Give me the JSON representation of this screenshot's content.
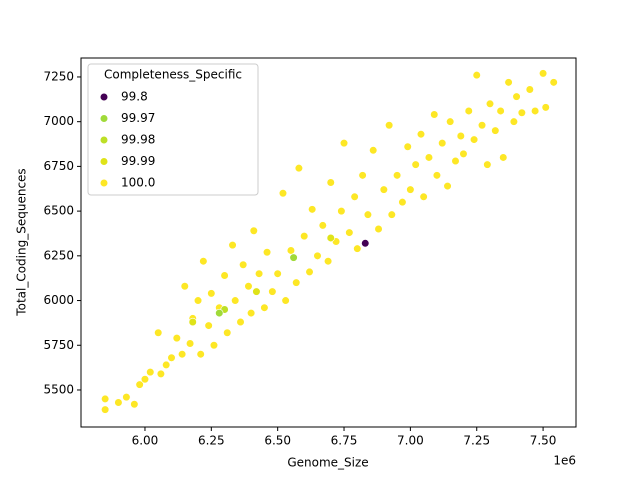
{
  "chart_data": {
    "type": "scatter",
    "xlabel": "Genome_Size",
    "ylabel": "Total_Coding_Sequences",
    "x_offset_label": "1e6",
    "xlim": [
      5759000,
      7624000
    ],
    "ylim": [
      5293,
      7356
    ],
    "xticks": [
      {
        "value": 6000000,
        "label": "6.00"
      },
      {
        "value": 6250000,
        "label": "6.25"
      },
      {
        "value": 6500000,
        "label": "6.50"
      },
      {
        "value": 6750000,
        "label": "6.75"
      },
      {
        "value": 7000000,
        "label": "7.00"
      },
      {
        "value": 7250000,
        "label": "7.25"
      },
      {
        "value": 7500000,
        "label": "7.50"
      }
    ],
    "yticks": [
      5500,
      5750,
      6000,
      6250,
      6500,
      6750,
      7000,
      7250
    ],
    "legend_title": "Completeness_Specific",
    "legend_loc": "upper left",
    "series": [
      {
        "name": "100.0",
        "color": "#fde725",
        "x": [
          5850000,
          5850000,
          5900000,
          5930000,
          5960000,
          5980000,
          6000000,
          6020000,
          6050000,
          6060000,
          6080000,
          6100000,
          6120000,
          6140000,
          6150000,
          6170000,
          6180000,
          6200000,
          6210000,
          6220000,
          6240000,
          6250000,
          6260000,
          6280000,
          6300000,
          6310000,
          6330000,
          6340000,
          6360000,
          6370000,
          6390000,
          6400000,
          6410000,
          6430000,
          6450000,
          6460000,
          6480000,
          6500000,
          6520000,
          6530000,
          6550000,
          6570000,
          6580000,
          6600000,
          6620000,
          6630000,
          6650000,
          6670000,
          6690000,
          6700000,
          6720000,
          6740000,
          6750000,
          6770000,
          6790000,
          6800000,
          6820000,
          6840000,
          6860000,
          6880000,
          6900000,
          6920000,
          6930000,
          6950000,
          6970000,
          6990000,
          7000000,
          7020000,
          7040000,
          7050000,
          7070000,
          7090000,
          7100000,
          7120000,
          7140000,
          7150000,
          7170000,
          7190000,
          7200000,
          7220000,
          7240000,
          7250000,
          7270000,
          7290000,
          7300000,
          7320000,
          7340000,
          7350000,
          7370000,
          7390000,
          7400000,
          7420000,
          7450000,
          7470000,
          7500000,
          7510000,
          7540000
        ],
        "y": [
          5390,
          5450,
          5430,
          5460,
          5420,
          5530,
          5560,
          5600,
          5820,
          5590,
          5640,
          5680,
          5790,
          5700,
          6080,
          5760,
          5900,
          6000,
          5700,
          6220,
          5860,
          6040,
          5750,
          5960,
          6140,
          5820,
          6310,
          6000,
          5880,
          6200,
          6080,
          5930,
          6390,
          6150,
          5960,
          6270,
          6050,
          6150,
          6600,
          6000,
          6280,
          6100,
          6740,
          6360,
          6160,
          6510,
          6250,
          6420,
          6220,
          6660,
          6330,
          6500,
          6880,
          6380,
          6580,
          6290,
          6700,
          6480,
          6840,
          6400,
          6620,
          6980,
          6480,
          6700,
          6550,
          6860,
          6620,
          6760,
          6930,
          6580,
          6800,
          7040,
          6700,
          6880,
          6640,
          7000,
          6780,
          6920,
          6820,
          7060,
          6900,
          7260,
          6980,
          6760,
          7100,
          6950,
          7060,
          6800,
          7220,
          7000,
          7140,
          7050,
          7180,
          7060,
          7270,
          7080,
          7220
        ]
      },
      {
        "name": "99.99",
        "color": "#dfe318",
        "x": [
          6180000,
          6420000,
          6700000
        ],
        "y": [
          5880,
          6050,
          6350
        ]
      },
      {
        "name": "99.98",
        "color": "#bddf26",
        "x": [
          6300000
        ],
        "y": [
          5950
        ]
      },
      {
        "name": "99.97",
        "color": "#a0da39",
        "x": [
          6280000,
          6560000
        ],
        "y": [
          5930,
          6240
        ]
      },
      {
        "name": "99.8",
        "color": "#440154",
        "x": [
          6830000
        ],
        "y": [
          6320
        ]
      }
    ],
    "legend_order": [
      4,
      3,
      2,
      1,
      0
    ]
  }
}
